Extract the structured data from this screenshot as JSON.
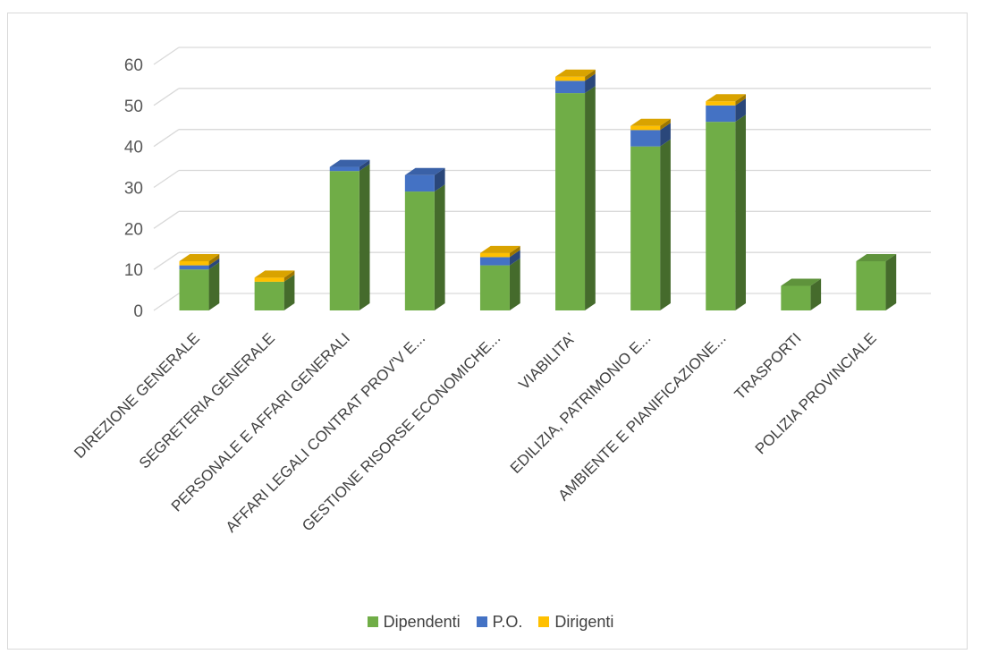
{
  "chart_data": {
    "type": "bar",
    "stacked": true,
    "three_d": true,
    "categories": [
      "DIREZIONE GENERALE",
      "SEGRETERIA GENERALE",
      "PERSONALE E AFFARI GENERALI",
      "AFFARI LEGALI CONTRAT PROV'V E...",
      "GESTIONE RISORSE ECONOMICHE...",
      "VIABILITA'",
      "EDILIZIA, PATRIMONIO E...",
      "AMBIENTE E PIANIFICAZIONE...",
      "TRASPORTI",
      "POLIZIA PROVINCIALE"
    ],
    "series": [
      {
        "name": "Dipendenti",
        "color": "#70ad47",
        "values": [
          10,
          7,
          34,
          29,
          11,
          53,
          40,
          46,
          6,
          12
        ]
      },
      {
        "name": "P.O.",
        "color": "#4472c4",
        "values": [
          1,
          0,
          1,
          4,
          2,
          3,
          4,
          4,
          0,
          0
        ]
      },
      {
        "name": "Dirigenti",
        "color": "#ffc000",
        "values": [
          1,
          1,
          0,
          0,
          1,
          1,
          1,
          1,
          0,
          0
        ]
      }
    ],
    "yticks": [
      "0",
      "10",
      "20",
      "30",
      "40",
      "50",
      "60"
    ],
    "ylim": [
      0,
      60
    ],
    "grid": true,
    "legend_position": "bottom"
  }
}
